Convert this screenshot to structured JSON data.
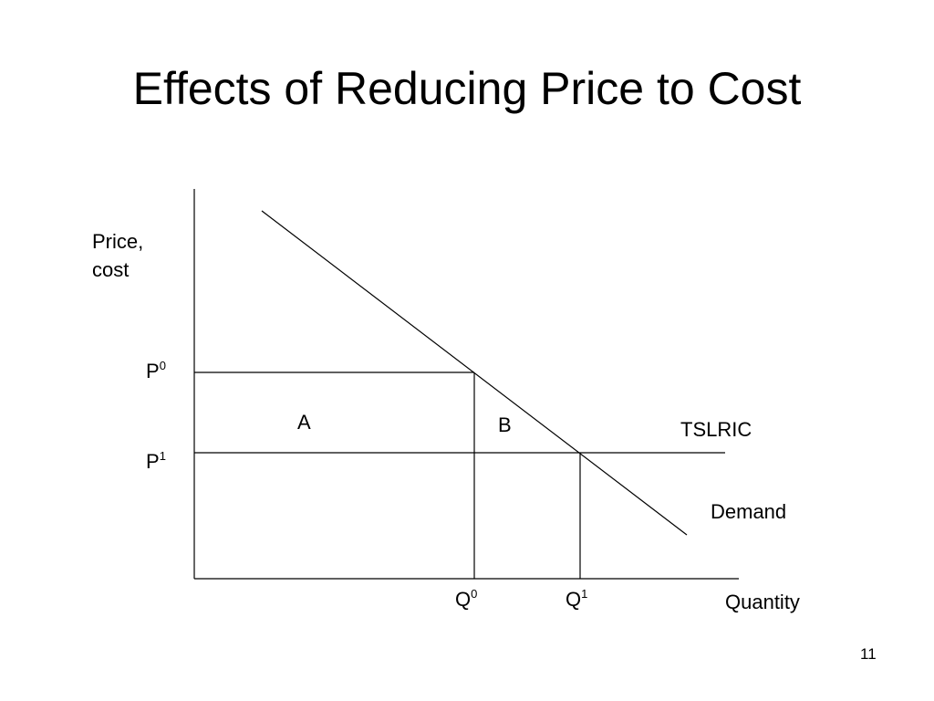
{
  "slide": {
    "title": "Effects of Reducing Price to Cost",
    "page_number": "11"
  },
  "diagram": {
    "y_axis_label": "Price, cost",
    "x_axis_label": "Quantity",
    "price_0": {
      "base": "P",
      "superscript": "0"
    },
    "price_1": {
      "base": "P",
      "superscript": "1"
    },
    "quantity_0": {
      "base": "Q",
      "superscript": "0"
    },
    "quantity_1": {
      "base": "Q",
      "superscript": "1"
    },
    "area_a_label": "A",
    "area_b_label": "B",
    "cost_curve_label": "TSLRIC",
    "demand_curve_label": "Demand",
    "line_color": "#000000"
  }
}
